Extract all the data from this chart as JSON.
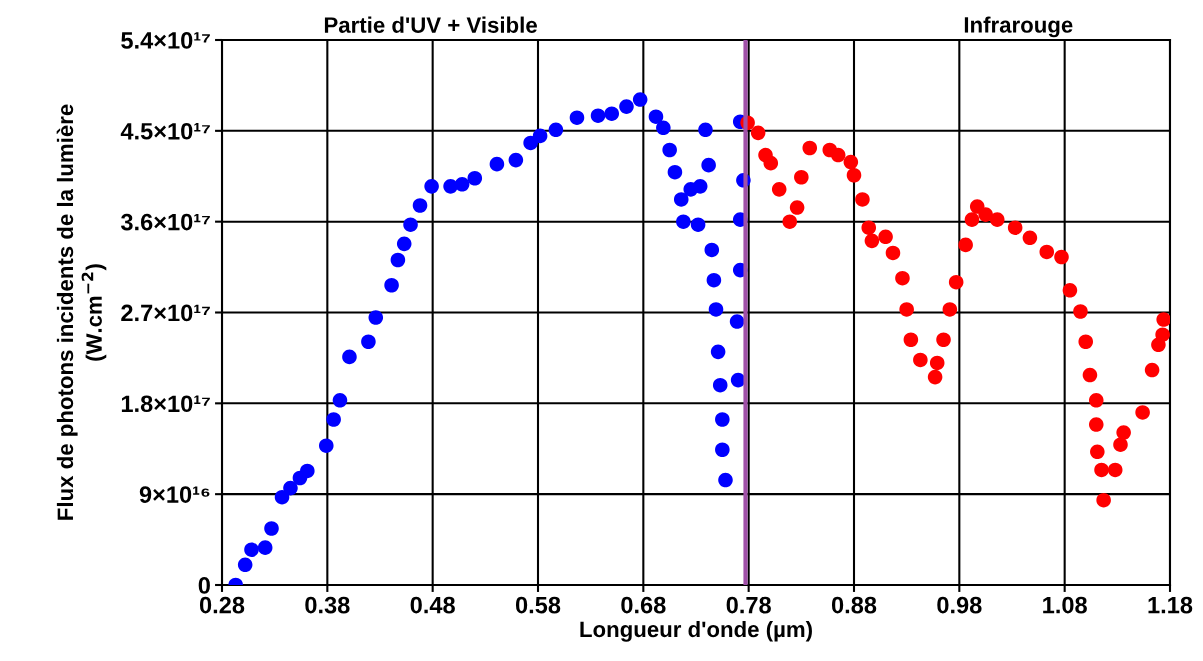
{
  "chart_data": {
    "type": "scatter",
    "xlabel": "Longueur d'onde (µm)",
    "ylabel": "Flux de photons incidents de la lumière\n(W.cm$^{−2}$)",
    "annotations": [
      "Partie d'UV + Visible",
      "Infrarouge"
    ],
    "xlim": [
      0.28,
      1.18
    ],
    "xticks": [
      0.28,
      0.38,
      0.48,
      0.58,
      0.68,
      0.78,
      0.88,
      0.98,
      1.08,
      1.18
    ],
    "ylim": [
      0,
      5.4e+17
    ],
    "yticks": [
      {
        "value": 0,
        "label": "0"
      },
      {
        "value": 9e+16,
        "label": "9×10¹⁶"
      },
      {
        "value": 1.8e+17,
        "label": "1.8×10¹⁷"
      },
      {
        "value": 2.7e+17,
        "label": "2.7×10¹⁷"
      },
      {
        "value": 3.6e+17,
        "label": "3.6×10¹⁷"
      },
      {
        "value": 4.5e+17,
        "label": "4.5×10¹⁷"
      },
      {
        "value": 5.4e+17,
        "label": "5.4×10¹⁷"
      }
    ],
    "grid": true,
    "marker": "circle",
    "legend": false,
    "ref_lines": [
      {
        "axis": "x",
        "value": 0.777,
        "color": "#a050a8"
      }
    ],
    "series": [
      {
        "color": "#0000ff",
        "x": [
          0.293,
          0.302,
          0.308,
          0.321,
          0.327,
          0.337,
          0.345,
          0.354,
          0.361,
          0.379,
          0.386,
          0.392,
          0.401,
          0.419,
          0.426,
          0.441,
          0.447,
          0.453,
          0.459,
          0.468,
          0.479,
          0.497,
          0.508,
          0.52,
          0.541,
          0.559,
          0.573,
          0.582,
          0.597,
          0.617,
          0.637,
          0.65,
          0.664,
          0.677,
          0.692,
          0.699,
          0.705,
          0.71,
          0.716,
          0.718,
          0.725,
          0.732,
          0.734,
          0.739,
          0.742,
          0.745,
          0.747,
          0.749,
          0.751,
          0.753,
          0.755,
          0.755,
          0.758,
          0.77,
          0.769,
          0.772,
          0.772,
          0.775,
          0.772
        ],
        "values": [
          0,
          2e+16,
          3.5e+16,
          3.7e+16,
          5.6e+16,
          8.7e+16,
          9.6e+16,
          1.06e+17,
          1.13e+17,
          1.38e+17,
          1.64e+17,
          1.83e+17,
          2.26e+17,
          2.41e+17,
          2.65e+17,
          2.97e+17,
          3.22e+17,
          3.38e+17,
          3.57e+17,
          3.76e+17,
          3.95e+17,
          3.95e+17,
          3.97e+17,
          4.03e+17,
          4.17e+17,
          4.21e+17,
          4.38e+17,
          4.45e+17,
          4.51e+17,
          4.63e+17,
          4.65e+17,
          4.67e+17,
          4.74e+17,
          4.81e+17,
          4.64e+17,
          4.53e+17,
          4.31e+17,
          4.09e+17,
          3.82e+17,
          3.6e+17,
          3.92e+17,
          3.57e+17,
          3.95e+17,
          4.51e+17,
          4.16e+17,
          3.32e+17,
          3.02e+17,
          2.73e+17,
          2.31e+17,
          1.98e+17,
          1.64e+17,
          1.34e+17,
          1.04e+17,
          2.03e+17,
          2.61e+17,
          3.12e+17,
          3.62e+17,
          4.01e+17,
          4.59e+17
        ]
      },
      {
        "color": "#ff0000",
        "x": [
          0.779,
          0.789,
          0.796,
          0.801,
          0.809,
          0.819,
          0.826,
          0.83,
          0.838,
          0.857,
          0.865,
          0.877,
          0.88,
          0.888,
          0.894,
          0.897,
          0.91,
          0.917,
          0.926,
          0.93,
          0.934,
          0.943,
          0.957,
          0.959,
          0.965,
          0.971,
          0.977,
          0.986,
          0.992,
          0.997,
          1.005,
          1.016,
          1.033,
          1.047,
          1.063,
          1.077,
          1.085,
          1.095,
          1.1,
          1.104,
          1.11,
          1.11,
          1.111,
          1.115,
          1.117,
          1.128,
          1.133,
          1.136,
          1.154,
          1.163,
          1.169,
          1.173,
          1.174
        ],
        "values": [
          4.58e+17,
          4.48e+17,
          4.26e+17,
          4.18e+17,
          3.92e+17,
          3.6e+17,
          3.74e+17,
          4.04e+17,
          4.33e+17,
          4.31e+17,
          4.26e+17,
          4.19e+17,
          4.06e+17,
          3.82e+17,
          3.54e+17,
          3.41e+17,
          3.45e+17,
          3.29e+17,
          3.04e+17,
          2.73e+17,
          2.43e+17,
          2.23e+17,
          2.06e+17,
          2.2e+17,
          2.43e+17,
          2.73e+17,
          3e+17,
          3.37e+17,
          3.62e+17,
          3.75e+17,
          3.67e+17,
          3.62e+17,
          3.54e+17,
          3.44e+17,
          3.3e+17,
          3.25e+17,
          2.92e+17,
          2.71e+17,
          2.41e+17,
          2.08e+17,
          1.83e+17,
          1.59e+17,
          1.32e+17,
          1.14e+17,
          8.4e+16,
          1.14e+17,
          1.39e+17,
          1.51e+17,
          1.71e+17,
          2.13e+17,
          2.38e+17,
          2.48e+17,
          2.63e+17
        ]
      }
    ]
  }
}
